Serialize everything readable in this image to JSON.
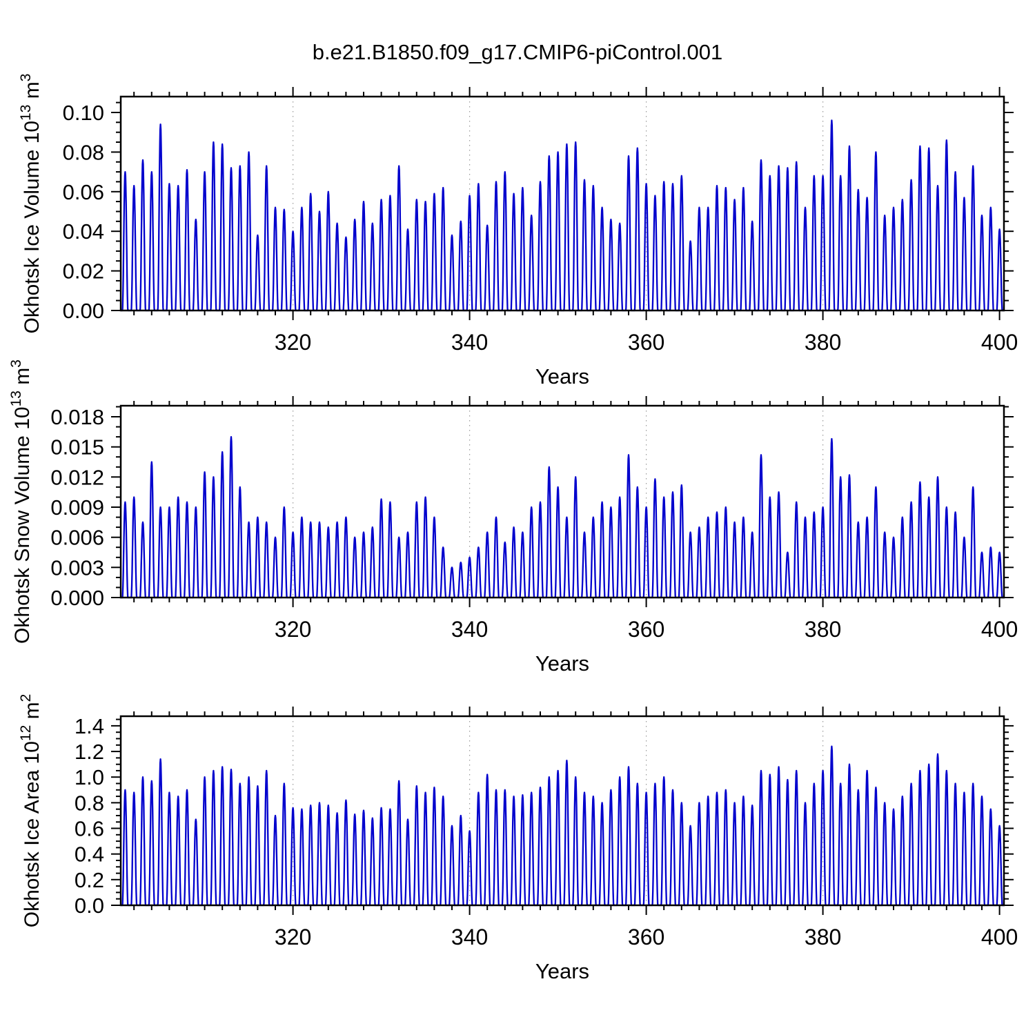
{
  "title": "b.e21.B1850.f09_g17.CMIP6-piControl.001",
  "chart_data": {
    "type": "line",
    "title": "b.e21.B1850.f09_g17.CMIP6-piControl.001",
    "line_color": "#0000cd",
    "gridline_color": "#999999",
    "axis_color": "#000000",
    "x": {
      "label": "Years",
      "start_year": 301,
      "end_year": 400,
      "axis_min": 300.5,
      "axis_max": 400.5,
      "major_ticks": [
        320,
        340,
        360,
        380,
        400
      ],
      "minor_tick_step": 2,
      "gridlines": [
        320,
        340,
        360,
        380
      ]
    },
    "panels": [
      {
        "name": "okhotsk-ice-volume",
        "ylabel_parts": [
          {
            "t": "Okhotsk Ice Volume 10",
            "sup": false
          },
          {
            "t": "13",
            "sup": true
          },
          {
            "t": " m",
            "sup": false
          },
          {
            "t": "3",
            "sup": true
          }
        ],
        "ytick_values": [
          0.0,
          0.02,
          0.04,
          0.06,
          0.08,
          0.1
        ],
        "ytick_labels": [
          "0.00",
          "0.02",
          "0.04",
          "0.06",
          "0.08",
          "0.10"
        ],
        "y_axis_max": 0.108,
        "y_minor_step": 0.005,
        "annual_peaks": [
          0.07,
          0.063,
          0.076,
          0.07,
          0.094,
          0.064,
          0.063,
          0.071,
          0.046,
          0.07,
          0.085,
          0.084,
          0.072,
          0.073,
          0.08,
          0.038,
          0.073,
          0.052,
          0.051,
          0.04,
          0.052,
          0.059,
          0.05,
          0.06,
          0.044,
          0.037,
          0.046,
          0.055,
          0.044,
          0.056,
          0.058,
          0.073,
          0.041,
          0.056,
          0.055,
          0.059,
          0.062,
          0.038,
          0.045,
          0.058,
          0.064,
          0.043,
          0.065,
          0.07,
          0.059,
          0.062,
          0.048,
          0.065,
          0.078,
          0.08,
          0.084,
          0.085,
          0.066,
          0.063,
          0.052,
          0.046,
          0.044,
          0.078,
          0.082,
          0.064,
          0.058,
          0.065,
          0.064,
          0.068,
          0.035,
          0.052,
          0.052,
          0.063,
          0.062,
          0.056,
          0.062,
          0.045,
          0.076,
          0.068,
          0.073,
          0.072,
          0.075,
          0.052,
          0.068,
          0.068,
          0.096,
          0.068,
          0.083,
          0.061,
          0.057,
          0.08,
          0.048,
          0.052,
          0.056,
          0.066,
          0.083,
          0.082,
          0.063,
          0.086,
          0.07,
          0.057,
          0.073,
          0.048,
          0.052,
          0.041
        ]
      },
      {
        "name": "okhotsk-snow-volume",
        "ylabel_parts": [
          {
            "t": "Okhotsk Snow Volume 10",
            "sup": false
          },
          {
            "t": "13",
            "sup": true
          },
          {
            "t": " m",
            "sup": false
          },
          {
            "t": "3",
            "sup": true
          }
        ],
        "ytick_values": [
          0.0,
          0.003,
          0.006,
          0.009,
          0.012,
          0.015,
          0.018
        ],
        "ytick_labels": [
          "0.000",
          "0.003",
          "0.006",
          "0.009",
          "0.012",
          "0.015",
          "0.018"
        ],
        "y_axis_max": 0.0191,
        "y_minor_step": 0.001,
        "annual_peaks": [
          0.0095,
          0.01,
          0.0075,
          0.0135,
          0.009,
          0.009,
          0.01,
          0.0095,
          0.009,
          0.0125,
          0.012,
          0.0145,
          0.016,
          0.011,
          0.0075,
          0.008,
          0.0075,
          0.006,
          0.009,
          0.0065,
          0.008,
          0.0075,
          0.0075,
          0.007,
          0.0075,
          0.008,
          0.006,
          0.0065,
          0.007,
          0.0098,
          0.0095,
          0.006,
          0.0065,
          0.0095,
          0.01,
          0.008,
          0.005,
          0.003,
          0.0035,
          0.004,
          0.005,
          0.0065,
          0.008,
          0.0055,
          0.007,
          0.0065,
          0.009,
          0.0095,
          0.013,
          0.011,
          0.008,
          0.012,
          0.0065,
          0.008,
          0.0095,
          0.009,
          0.01,
          0.0142,
          0.011,
          0.009,
          0.0118,
          0.01,
          0.0105,
          0.0112,
          0.0065,
          0.007,
          0.008,
          0.0085,
          0.009,
          0.0075,
          0.008,
          0.0065,
          0.0142,
          0.01,
          0.0105,
          0.0045,
          0.0095,
          0.008,
          0.0085,
          0.009,
          0.0158,
          0.012,
          0.0122,
          0.0075,
          0.008,
          0.011,
          0.0065,
          0.006,
          0.008,
          0.0095,
          0.0115,
          0.01,
          0.012,
          0.009,
          0.0085,
          0.006,
          0.011,
          0.0045,
          0.005,
          0.0045
        ]
      },
      {
        "name": "okhotsk-ice-area",
        "ylabel_parts": [
          {
            "t": "Okhotsk Ice Area 10",
            "sup": false
          },
          {
            "t": "12",
            "sup": true
          },
          {
            "t": " m",
            "sup": false
          },
          {
            "t": "2",
            "sup": true
          }
        ],
        "ytick_values": [
          0.0,
          0.2,
          0.4,
          0.6,
          0.8,
          1.0,
          1.2,
          1.4
        ],
        "ytick_labels": [
          "0.0",
          "0.2",
          "0.4",
          "0.6",
          "0.8",
          "1.0",
          "1.2",
          "1.4"
        ],
        "y_axis_max": 1.475,
        "y_minor_step": 0.05,
        "annual_peaks": [
          0.9,
          0.88,
          1.0,
          0.97,
          1.14,
          0.88,
          0.85,
          0.9,
          0.67,
          1.0,
          1.05,
          1.08,
          1.06,
          0.95,
          1.0,
          0.93,
          1.05,
          0.7,
          0.95,
          0.76,
          0.75,
          0.78,
          0.8,
          0.78,
          0.72,
          0.82,
          0.71,
          0.74,
          0.68,
          0.76,
          0.75,
          0.97,
          0.67,
          0.93,
          0.88,
          0.92,
          0.85,
          0.62,
          0.7,
          0.58,
          0.88,
          1.02,
          0.9,
          0.9,
          0.85,
          0.86,
          0.88,
          0.92,
          1.0,
          1.05,
          1.13,
          1.0,
          0.88,
          0.85,
          0.8,
          0.9,
          1.0,
          1.08,
          0.95,
          0.88,
          0.95,
          1.0,
          0.9,
          0.8,
          0.62,
          0.8,
          0.85,
          0.88,
          0.9,
          0.8,
          0.85,
          0.78,
          1.05,
          1.02,
          1.08,
          0.98,
          1.05,
          0.8,
          0.95,
          1.05,
          1.24,
          0.95,
          1.1,
          0.9,
          1.05,
          0.92,
          0.8,
          0.75,
          0.85,
          0.95,
          1.05,
          1.1,
          1.18,
          1.05,
          0.95,
          0.88,
          0.95,
          0.85,
          0.75,
          0.62
        ]
      }
    ]
  }
}
